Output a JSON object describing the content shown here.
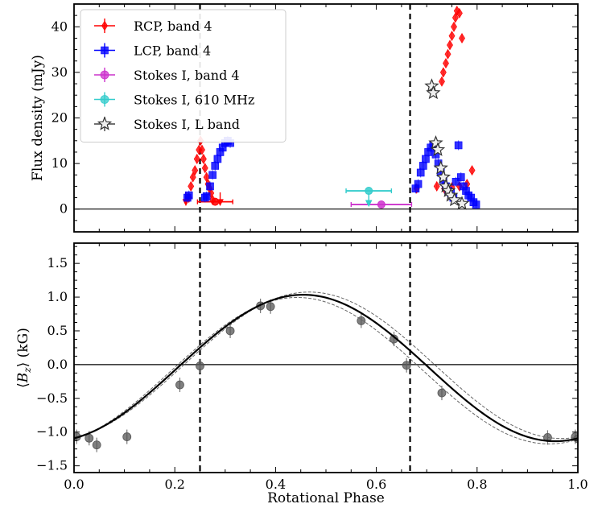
{
  "chart_data": [
    {
      "type": "scatter",
      "panel": "top",
      "xlabel": "",
      "ylabel": "Flux density (mJy)",
      "xlim": [
        0.0,
        1.0
      ],
      "ylim": [
        -5,
        45
      ],
      "yticks": [
        0,
        10,
        20,
        30,
        40
      ],
      "grid": false,
      "legend_position": "top-left",
      "reference_lines": {
        "horizontal": [
          0
        ],
        "vertical_dashed": [
          0.25,
          0.667
        ]
      },
      "series": [
        {
          "name": "RCP, band 4",
          "color": "#ff0000",
          "marker": "diamond",
          "points": [
            [
              0.228,
              2.5
            ],
            [
              0.232,
              5
            ],
            [
              0.236,
              7
            ],
            [
              0.24,
              8.5
            ],
            [
              0.244,
              11
            ],
            [
              0.248,
              13
            ],
            [
              0.251,
              15
            ],
            [
              0.254,
              13
            ],
            [
              0.257,
              11
            ],
            [
              0.26,
              9
            ],
            [
              0.263,
              7
            ],
            [
              0.266,
              5.5
            ],
            [
              0.269,
              4.5
            ],
            [
              0.272,
              3.5
            ],
            [
              0.275,
              2
            ],
            [
              0.68,
              4.5
            ],
            [
              0.72,
              5
            ],
            [
              0.735,
              4.5
            ],
            [
              0.75,
              4.8
            ],
            [
              0.765,
              5
            ],
            [
              0.78,
              5.5
            ],
            [
              0.79,
              8.5
            ],
            [
              0.73,
              28
            ],
            [
              0.733,
              30
            ],
            [
              0.738,
              32
            ],
            [
              0.742,
              34
            ],
            [
              0.746,
              36
            ],
            [
              0.75,
              38
            ],
            [
              0.754,
              40
            ],
            [
              0.757,
              42
            ],
            [
              0.76,
              43.5
            ],
            [
              0.765,
              43
            ],
            [
              0.77,
              37.5
            ]
          ],
          "upper_limits": [
            [
              0.222,
              1.2
            ],
            [
              0.29,
              1.2
            ]
          ],
          "errorbar_points": [
            {
              "x": 0.28,
              "y": 1.6,
              "xerr": 0.035
            }
          ]
        },
        {
          "name": "LCP, band 4",
          "color": "#0000ff",
          "marker": "square",
          "points": [
            [
              0.225,
              2.5
            ],
            [
              0.228,
              3
            ],
            [
              0.26,
              2.5
            ],
            [
              0.263,
              2.8
            ],
            [
              0.27,
              5
            ],
            [
              0.275,
              7.5
            ],
            [
              0.28,
              9.5
            ],
            [
              0.285,
              11
            ],
            [
              0.29,
              12.5
            ],
            [
              0.295,
              13.5
            ],
            [
              0.3,
              14.5
            ],
            [
              0.305,
              15
            ],
            [
              0.31,
              14.5
            ],
            [
              0.678,
              4.5
            ],
            [
              0.683,
              5.5
            ],
            [
              0.688,
              8
            ],
            [
              0.693,
              9.5
            ],
            [
              0.698,
              11
            ],
            [
              0.703,
              12.5
            ],
            [
              0.708,
              13.5
            ],
            [
              0.713,
              14
            ],
            [
              0.718,
              12
            ],
            [
              0.723,
              10
            ],
            [
              0.728,
              8
            ],
            [
              0.733,
              6.5
            ],
            [
              0.738,
              5
            ],
            [
              0.743,
              4
            ],
            [
              0.748,
              3.5
            ],
            [
              0.753,
              2.5
            ],
            [
              0.758,
              6
            ],
            [
              0.763,
              14
            ],
            [
              0.768,
              7
            ],
            [
              0.773,
              5
            ],
            [
              0.778,
              4
            ],
            [
              0.783,
              3
            ],
            [
              0.788,
              2.5
            ],
            [
              0.793,
              1.5
            ],
            [
              0.798,
              1
            ]
          ]
        },
        {
          "name": "Stokes I, band 4",
          "color": "#cc33cc",
          "marker": "circle",
          "errorbar_points": [
            {
              "x": 0.61,
              "y": 1.0,
              "xerr": 0.06
            }
          ]
        },
        {
          "name": "Stokes I, 610 MHz",
          "color": "#33cccc",
          "marker": "circle",
          "errorbar_points": [
            {
              "x": 0.585,
              "y": 4.0,
              "xerr": 0.045
            }
          ],
          "upper_limits": [
            [
              0.585,
              1.0
            ]
          ]
        },
        {
          "name": "Stokes I, L band",
          "color": "#444444",
          "marker": "star",
          "points": [
            [
              0.71,
              27
            ],
            [
              0.713,
              25.5
            ],
            [
              0.718,
              14.5
            ],
            [
              0.722,
              13
            ],
            [
              0.728,
              9
            ],
            [
              0.733,
              7
            ],
            [
              0.738,
              5
            ],
            [
              0.743,
              4
            ],
            [
              0.748,
              3
            ],
            [
              0.755,
              2
            ],
            [
              0.77,
              1.2
            ]
          ]
        }
      ]
    },
    {
      "type": "scatter",
      "panel": "bottom",
      "xlabel": "Rotational Phase",
      "ylabel": "⟨B_z⟩ (kG)",
      "xlim": [
        0.0,
        1.0
      ],
      "ylim": [
        -1.6,
        1.8
      ],
      "xticks": [
        0.0,
        0.2,
        0.4,
        0.6,
        0.8,
        1.0
      ],
      "yticks": [
        -1.5,
        -1.0,
        -0.5,
        0.0,
        0.5,
        1.0,
        1.5
      ],
      "grid": false,
      "reference_lines": {
        "horizontal": [
          0
        ],
        "vertical_dashed": [
          0.25,
          0.667
        ]
      },
      "series": [
        {
          "name": "",
          "color": "#555555",
          "marker": "circle",
          "points": [
            [
              0.005,
              -1.07
            ],
            [
              0.03,
              -1.09
            ],
            [
              0.045,
              -1.19
            ],
            [
              0.105,
              -1.07
            ],
            [
              0.21,
              -0.3
            ],
            [
              0.25,
              -0.02
            ],
            [
              0.31,
              0.5
            ],
            [
              0.37,
              0.87
            ],
            [
              0.39,
              0.86
            ],
            [
              0.57,
              0.65
            ],
            [
              0.635,
              0.38
            ],
            [
              0.66,
              -0.01
            ],
            [
              0.73,
              -0.42
            ],
            [
              0.94,
              -1.08
            ],
            [
              0.995,
              -1.07
            ],
            [
              1.0,
              -1.1
            ]
          ]
        },
        {
          "name": "",
          "type": "line",
          "color": "#000000",
          "model": {
            "mean": -0.05,
            "amplitude": 1.085,
            "phase_of_max": 0.455
          }
        }
      ]
    }
  ]
}
